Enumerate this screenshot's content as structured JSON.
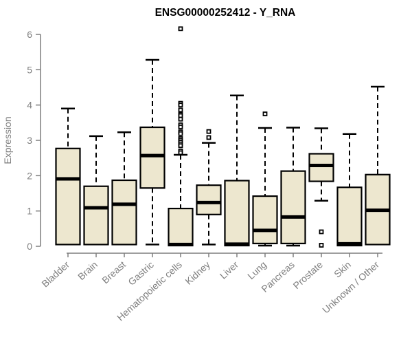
{
  "chart_data": {
    "type": "boxplot",
    "title": "ENSG00000252412 - Y_RNA",
    "xlabel": "",
    "ylabel": "Expression",
    "ylim": [
      0,
      6
    ],
    "yticks": [
      0,
      1,
      2,
      3,
      4,
      5,
      6
    ],
    "grid": false,
    "legend": "none",
    "colors": {
      "box_fill": "#EDE7CF",
      "box_stroke": "#000000",
      "median": "#000000",
      "whisker": "#000000",
      "outlier": "#000000",
      "axis": "#7f7f7f",
      "title": "#000000"
    },
    "categories": [
      "Bladder",
      "Brain",
      "Breast",
      "Gastric",
      "Hematopoietic cells",
      "Kidney",
      "Liver",
      "Lung",
      "Pancreas",
      "Prostate",
      "Skin",
      "Unknown / Other"
    ],
    "series": [
      {
        "name": "Bladder",
        "whisker_low": 0.02,
        "q1": 0.05,
        "median": 1.91,
        "q3": 2.77,
        "whisker_high": 3.9,
        "outliers": []
      },
      {
        "name": "Brain",
        "whisker_low": 0.02,
        "q1": 0.05,
        "median": 1.09,
        "q3": 1.7,
        "whisker_high": 3.12,
        "outliers": []
      },
      {
        "name": "Breast",
        "whisker_low": 0.02,
        "q1": 0.05,
        "median": 1.19,
        "q3": 1.87,
        "whisker_high": 3.23,
        "outliers": []
      },
      {
        "name": "Gastric",
        "whisker_low": 0.05,
        "q1": 1.65,
        "median": 2.57,
        "q3": 3.37,
        "whisker_high": 5.28,
        "outliers": []
      },
      {
        "name": "Hematopoietic cells",
        "whisker_low": 0.0,
        "q1": 0.02,
        "median": 0.05,
        "q3": 1.07,
        "whisker_high": 2.59,
        "outliers": [
          6.16,
          4.05,
          4.0,
          3.86,
          3.74,
          3.7,
          3.6,
          3.44,
          3.38,
          3.24,
          3.19,
          3.05,
          3.0,
          2.95,
          2.9,
          2.85,
          2.7,
          2.65
        ]
      },
      {
        "name": "Kidney",
        "whisker_low": 0.05,
        "q1": 0.9,
        "median": 1.24,
        "q3": 1.73,
        "whisker_high": 2.93,
        "outliers": [
          3.25,
          3.08
        ]
      },
      {
        "name": "Liver",
        "whisker_low": 0.0,
        "q1": 0.02,
        "median": 0.06,
        "q3": 1.86,
        "whisker_high": 4.27,
        "outliers": []
      },
      {
        "name": "Lung",
        "whisker_low": 0.02,
        "q1": 0.08,
        "median": 0.45,
        "q3": 1.42,
        "whisker_high": 3.35,
        "outliers": [
          3.75
        ]
      },
      {
        "name": "Pancreas",
        "whisker_low": 0.02,
        "q1": 0.08,
        "median": 0.83,
        "q3": 2.13,
        "whisker_high": 3.36,
        "outliers": []
      },
      {
        "name": "Prostate",
        "whisker_low": 1.29,
        "q1": 1.84,
        "median": 2.29,
        "q3": 2.62,
        "whisker_high": 3.34,
        "outliers": [
          0.41,
          0.03
        ]
      },
      {
        "name": "Skin",
        "whisker_low": 0.0,
        "q1": 0.02,
        "median": 0.07,
        "q3": 1.67,
        "whisker_high": 3.18,
        "outliers": []
      },
      {
        "name": "Unknown / Other",
        "whisker_low": 0.02,
        "q1": 0.05,
        "median": 1.02,
        "q3": 2.03,
        "whisker_high": 4.52,
        "outliers": []
      }
    ]
  }
}
